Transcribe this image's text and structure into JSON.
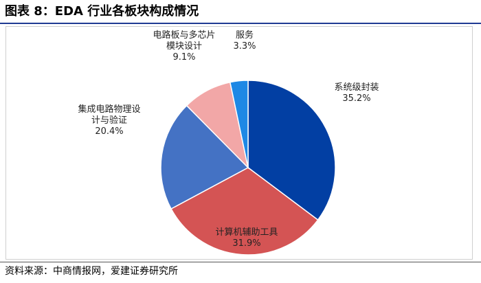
{
  "title": "图表 8：EDA 行业各板块构成情况",
  "source": "资料来源：中商情报网，爱建证券研究所",
  "colors": {
    "title_rule": "#1f3a93",
    "slices": [
      "#023fa3",
      "#d45454",
      "#4472c4",
      "#f2a7a7",
      "#1e88e5"
    ]
  },
  "chart_data": {
    "type": "pie",
    "title": "",
    "slices": [
      {
        "label_lines": [
          "系统级封装"
        ],
        "value": 35.2,
        "value_label": "35.2%"
      },
      {
        "label_lines": [
          "计算机辅助工具"
        ],
        "value": 31.9,
        "value_label": "31.9%"
      },
      {
        "label_lines": [
          "集成电路物理设",
          "计与验证"
        ],
        "value": 20.4,
        "value_label": "20.4%"
      },
      {
        "label_lines": [
          "电路板与多芯片",
          "模块设计"
        ],
        "value": 9.1,
        "value_label": "9.1%"
      },
      {
        "label_lines": [
          "服务"
        ],
        "value": 3.3,
        "value_label": "3.3%"
      }
    ],
    "start_direction": "12 o'clock",
    "orientation": "clockwise",
    "legend": "none"
  }
}
